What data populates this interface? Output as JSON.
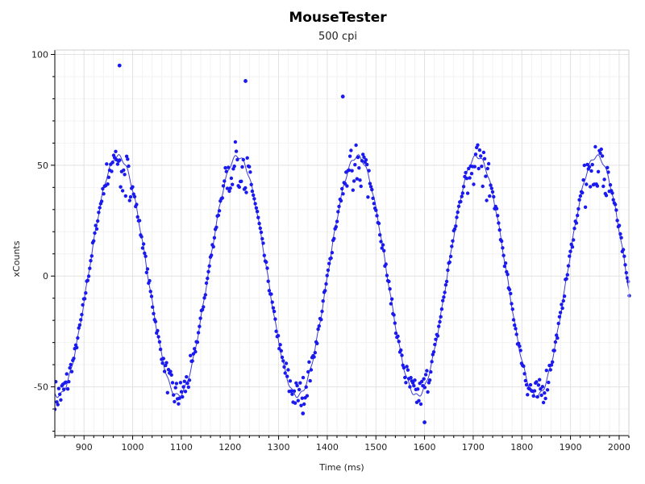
{
  "chart_data": {
    "type": "scatter",
    "title": "MouseTester",
    "subtitle": "500 cpi",
    "xlabel": "Time (ms)",
    "ylabel": "xCounts",
    "xlim": [
      840,
      2020
    ],
    "ylim": [
      -72,
      102
    ],
    "xticks": [
      900,
      1000,
      1100,
      1200,
      1300,
      1400,
      1500,
      1600,
      1700,
      1800,
      1900,
      2000
    ],
    "yticks": [
      -50,
      0,
      50,
      100
    ],
    "grid": true,
    "point_color": "#1a1aee",
    "line_color": "#3b3bd6",
    "series": [
      {
        "style": "line",
        "sine_model": {
          "amplitude": 54,
          "period_ms": 246,
          "peak_ms": 970
        }
      },
      {
        "style": "points",
        "outliers": [
          {
            "x": 973,
            "y": 95
          },
          {
            "x": 1232,
            "y": 88
          },
          {
            "x": 1432,
            "y": 81
          },
          {
            "x": 1350,
            "y": -62
          },
          {
            "x": 1600,
            "y": -66
          }
        ]
      }
    ]
  }
}
